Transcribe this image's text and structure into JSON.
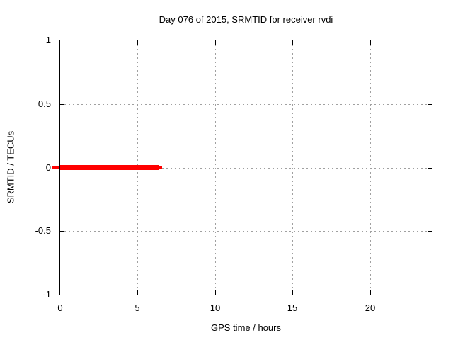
{
  "chart_data": {
    "type": "line",
    "title": "Day 076 of 2015, SRMTID for receiver rvdi",
    "xlabel": "GPS time / hours",
    "ylabel": "SRMTID / TECUs",
    "xlim": [
      0,
      24
    ],
    "ylim": [
      -1,
      1
    ],
    "xticks": [
      0,
      5,
      10,
      15,
      20
    ],
    "xtick_labels": [
      "0",
      "5",
      "10",
      "15",
      "20"
    ],
    "yticks": [
      1,
      0.5,
      0,
      -0.5,
      -1
    ],
    "ytick_labels": [
      "1",
      "0.5",
      "0",
      "-0.5",
      "-1"
    ],
    "grid": true,
    "legend": "none",
    "colors": {
      "line": "#ff0000",
      "grid": "#a0a0a0",
      "axis": "#000000",
      "background": "#ffffff"
    },
    "series": [
      {
        "name": "SRMTID",
        "color": "#ff0000",
        "y_value": 0,
        "segments": [
          {
            "x1": 0,
            "x2": 6.35,
            "y": 0,
            "linewidth": 7
          },
          {
            "x1": 6.42,
            "x2": 6.6,
            "y": 0,
            "linewidth": 3
          },
          {
            "x1": -0.55,
            "x2": -0.1,
            "y": 0,
            "linewidth": 3
          }
        ]
      }
    ]
  }
}
